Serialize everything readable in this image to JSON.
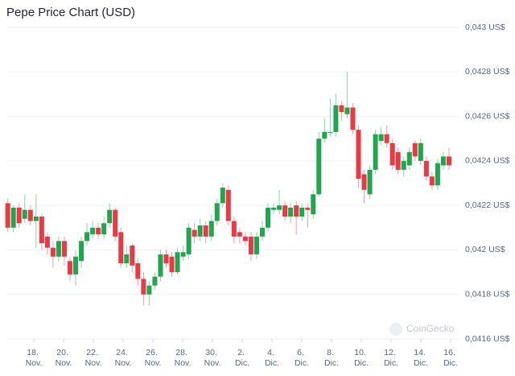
{
  "chart_data": {
    "type": "candlestick",
    "title": "Pepe Price Chart (USD)",
    "watermark": "CoinGecko",
    "xlim": [
      -0.84,
      29.27
    ],
    "ylim": [
      0.0416,
      0.043
    ],
    "xticks": [
      {
        "value": 1,
        "label": "18. Nov."
      },
      {
        "value": 3,
        "label": "20. Nov."
      },
      {
        "value": 5,
        "label": "22. Nov."
      },
      {
        "value": 7,
        "label": "24. Nov."
      },
      {
        "value": 9,
        "label": "26. Nov."
      },
      {
        "value": 11,
        "label": "28. Nov."
      },
      {
        "value": 13,
        "label": "30. Nov."
      },
      {
        "value": 15,
        "label": "2. Dic."
      },
      {
        "value": 17,
        "label": "4. Dic."
      },
      {
        "value": 19,
        "label": "6. Dic."
      },
      {
        "value": 21,
        "label": "8. Dic."
      },
      {
        "value": 23,
        "label": "10. Dic."
      },
      {
        "value": 25,
        "label": "12. Dic."
      },
      {
        "value": 27,
        "label": "14. Dic."
      },
      {
        "value": 29,
        "label": "16. Dic."
      }
    ],
    "yticks": [
      {
        "value": 0.0416,
        "label": "0,0416 US$"
      },
      {
        "value": 0.0418,
        "label": "0,0418 US$"
      },
      {
        "value": 0.042,
        "label": "0,042 US$"
      },
      {
        "value": 0.0422,
        "label": "0,0422 US$"
      },
      {
        "value": 0.0424,
        "label": "0,0424 US$"
      },
      {
        "value": 0.0426,
        "label": "0,0426 US$"
      },
      {
        "value": 0.0428,
        "label": "0,0428 US$"
      },
      {
        "value": 0.043,
        "label": "0,043 US$"
      }
    ],
    "grid": true,
    "up_color": "#1fa64e",
    "down_color": "#ea3943",
    "x": [
      -0.75,
      -0.37,
      0.01,
      0.39,
      0.77,
      1.15,
      1.53,
      1.91,
      2.29,
      2.67,
      3.05,
      3.43,
      3.81,
      4.19,
      4.57,
      4.95,
      5.33,
      5.71,
      6.09,
      6.47,
      6.85,
      7.23,
      7.61,
      7.99,
      8.37,
      8.75,
      9.13,
      9.51,
      9.89,
      10.27,
      10.65,
      11.03,
      11.41,
      11.79,
      12.17,
      12.55,
      12.93,
      13.31,
      13.69,
      14.07,
      14.45,
      14.83,
      15.21,
      15.59,
      15.97,
      16.35,
      16.73,
      17.11,
      17.49,
      17.87,
      18.25,
      18.63,
      19.01,
      19.39,
      19.77,
      20.15,
      20.53,
      20.91,
      21.29,
      21.67,
      22.05,
      22.43,
      22.81,
      23.19,
      23.57,
      23.95,
      24.33,
      24.71,
      25.09,
      25.47,
      25.85,
      26.23,
      26.61,
      26.99,
      27.37,
      27.75,
      28.13,
      28.51,
      28.89
    ],
    "open": [
      0.04221,
      0.0421,
      0.04219,
      0.04214,
      0.04218,
      0.04213,
      0.04215,
      0.04206,
      0.04201,
      0.04197,
      0.04204,
      0.04195,
      0.04189,
      0.04195,
      0.04204,
      0.04207,
      0.0421,
      0.04207,
      0.04212,
      0.04218,
      0.04208,
      0.04194,
      0.04202,
      0.04194,
      0.04187,
      0.0418,
      0.04184,
      0.04188,
      0.04198,
      0.04197,
      0.0419,
      0.04197,
      0.04198,
      0.04209,
      0.04206,
      0.04211,
      0.04206,
      0.04213,
      0.04221,
      0.04227,
      0.04213,
      0.04208,
      0.04206,
      0.04206,
      0.04198,
      0.04206,
      0.0421,
      0.04218,
      0.04218,
      0.0422,
      0.04215,
      0.0422,
      0.04215,
      0.04219,
      0.04216,
      0.04225,
      0.0425,
      0.04253,
      0.04253,
      0.04265,
      0.04261,
      0.04264,
      0.04254,
      0.04234,
      0.04225,
      0.04236,
      0.04249,
      0.04252,
      0.04248,
      0.04244,
      0.04236,
      0.04238,
      0.04248,
      0.0424,
      0.0424,
      0.04233,
      0.04229,
      0.04238,
      0.04242
    ],
    "high": [
      0.04223,
      0.0422,
      0.04221,
      0.04225,
      0.0422,
      0.04225,
      0.04216,
      0.04208,
      0.04204,
      0.04206,
      0.04206,
      0.04197,
      0.042,
      0.04206,
      0.04212,
      0.04213,
      0.04212,
      0.04215,
      0.04221,
      0.04219,
      0.0421,
      0.04202,
      0.04203,
      0.04196,
      0.0419,
      0.04186,
      0.0419,
      0.042,
      0.042,
      0.04199,
      0.04201,
      0.04202,
      0.04212,
      0.04212,
      0.04214,
      0.04213,
      0.04216,
      0.04223,
      0.0423,
      0.04229,
      0.04215,
      0.0421,
      0.04208,
      0.04208,
      0.04208,
      0.04213,
      0.04221,
      0.04221,
      0.04227,
      0.04222,
      0.04221,
      0.04222,
      0.04221,
      0.04221,
      0.04227,
      0.04253,
      0.04259,
      0.04268,
      0.0427,
      0.04267,
      0.0428,
      0.04266,
      0.04256,
      0.04236,
      0.04238,
      0.04254,
      0.04255,
      0.04256,
      0.0425,
      0.04246,
      0.04242,
      0.04246,
      0.04249,
      0.0425,
      0.04242,
      0.04235,
      0.04241,
      0.04244,
      0.04246
    ],
    "low": [
      0.04208,
      0.04208,
      0.0421,
      0.04212,
      0.04211,
      0.04201,
      0.042,
      0.04198,
      0.04192,
      0.04195,
      0.04193,
      0.04186,
      0.04184,
      0.04192,
      0.04202,
      0.04205,
      0.04205,
      0.04205,
      0.0421,
      0.04204,
      0.04192,
      0.04192,
      0.0419,
      0.04184,
      0.04175,
      0.04175,
      0.04182,
      0.04186,
      0.04192,
      0.04188,
      0.04189,
      0.04195,
      0.04196,
      0.04203,
      0.04204,
      0.04203,
      0.04204,
      0.04211,
      0.04219,
      0.04211,
      0.04203,
      0.04203,
      0.04202,
      0.04195,
      0.04196,
      0.04204,
      0.04208,
      0.04216,
      0.04216,
      0.04213,
      0.04212,
      0.04207,
      0.04213,
      0.0421,
      0.04214,
      0.04224,
      0.04248,
      0.04251,
      0.04251,
      0.04258,
      0.04259,
      0.04252,
      0.04228,
      0.04221,
      0.04223,
      0.04234,
      0.04247,
      0.04246,
      0.04236,
      0.04234,
      0.04233,
      0.04236,
      0.0424,
      0.04238,
      0.04231,
      0.04227,
      0.04227,
      0.04236,
      0.04236
    ],
    "close": [
      0.0421,
      0.04219,
      0.04212,
      0.04218,
      0.04213,
      0.04215,
      0.04203,
      0.04201,
      0.04197,
      0.04204,
      0.04197,
      0.04189,
      0.04197,
      0.04204,
      0.04208,
      0.0421,
      0.04207,
      0.04212,
      0.04218,
      0.04206,
      0.04194,
      0.04198,
      0.04193,
      0.04187,
      0.0418,
      0.04184,
      0.04188,
      0.04198,
      0.04194,
      0.0419,
      0.04199,
      0.04199,
      0.0421,
      0.04206,
      0.04211,
      0.04206,
      0.04213,
      0.04221,
      0.04228,
      0.04213,
      0.04206,
      0.04206,
      0.04204,
      0.04198,
      0.04206,
      0.0421,
      0.04219,
      0.04219,
      0.0422,
      0.04215,
      0.04219,
      0.04215,
      0.04219,
      0.04218,
      0.04225,
      0.0425,
      0.04253,
      0.04253,
      0.04265,
      0.04262,
      0.04264,
      0.04254,
      0.04232,
      0.04227,
      0.04236,
      0.04252,
      0.04252,
      0.04248,
      0.04238,
      0.04236,
      0.0424,
      0.04244,
      0.04242,
      0.04248,
      0.04233,
      0.04229,
      0.04239,
      0.04242,
      0.04238
    ]
  }
}
